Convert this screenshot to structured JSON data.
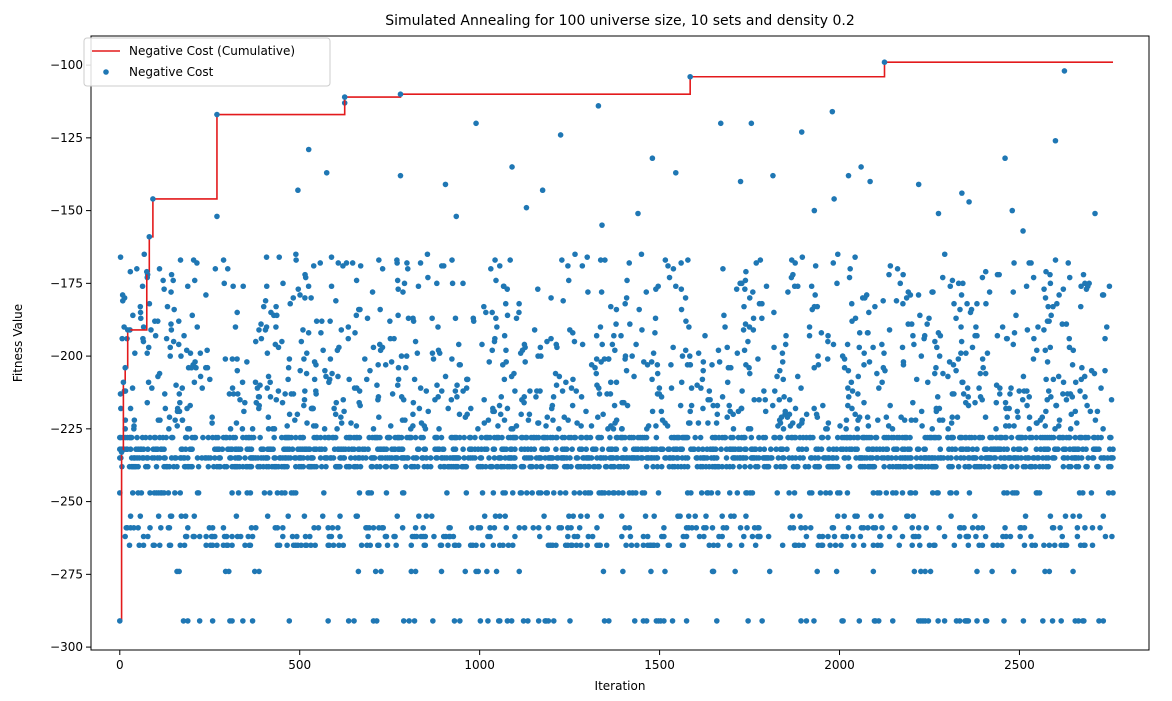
{
  "chart_data": {
    "type": "scatter",
    "title": "Simulated Annealing for 100 universe size, 10 sets and density 0.2",
    "xlabel": "Iteration",
    "ylabel": "Fitness Value",
    "xlim": [
      -80,
      2860
    ],
    "ylim": [
      -301,
      -90
    ],
    "xticks": [
      0,
      500,
      1000,
      1500,
      2000,
      2500
    ],
    "xtick_labels": [
      "0",
      "500",
      "1000",
      "1500",
      "2000",
      "2500"
    ],
    "yticks": [
      -300,
      -275,
      -250,
      -225,
      -200,
      -175,
      -150,
      -125,
      -100
    ],
    "ytick_labels": [
      "−300",
      "−275",
      "−250",
      "−225",
      "−200",
      "−175",
      "−150",
      "−125",
      "−100"
    ],
    "grid": false,
    "legend_position": "top-left",
    "legend": [
      "Negative Cost (Cumulative)",
      "Negative Cost"
    ],
    "series": [
      {
        "name": "Negative Cost (Cumulative)",
        "kind": "step-line",
        "color": "#e31a1c",
        "x": [
          0,
          5,
          10,
          15,
          22,
          75,
          82,
          92,
          270,
          625,
          780,
          1585,
          2125,
          2760
        ],
        "y": [
          -291,
          -233,
          -209,
          -204,
          -191,
          -171,
          -159,
          -146,
          -117,
          -111,
          -110,
          -104,
          -99,
          -99
        ]
      },
      {
        "name": "Negative Cost",
        "kind": "scatter",
        "color": "#1f77b4",
        "levels": [
          {
            "y": -291,
            "density": 0.09
          },
          {
            "y": -274,
            "density": 0.035
          },
          {
            "y": -265,
            "density": 0.14
          },
          {
            "y": -262,
            "density": 0.12
          },
          {
            "y": -259,
            "density": 0.1
          },
          {
            "y": -255,
            "density": 0.05
          },
          {
            "y": -247,
            "density": 0.14
          },
          {
            "y": -238,
            "density": 0.3
          },
          {
            "y": -235,
            "density": 0.45
          },
          {
            "y": -232,
            "density": 0.3
          },
          {
            "y": -228,
            "density": 0.35
          }
        ],
        "scattered_range": [
          -225,
          -165
        ],
        "scattered_count": 1000,
        "outliers": [
          {
            "x": 270,
            "y": -152
          },
          {
            "x": 300,
            "y": -170
          },
          {
            "x": 315,
            "y": -176
          },
          {
            "x": 400,
            "y": -183
          },
          {
            "x": 490,
            "y": -167
          },
          {
            "x": 495,
            "y": -143
          },
          {
            "x": 525,
            "y": -129
          },
          {
            "x": 575,
            "y": -137
          },
          {
            "x": 625,
            "y": -113
          },
          {
            "x": 630,
            "y": -168
          },
          {
            "x": 770,
            "y": -167
          },
          {
            "x": 780,
            "y": -138
          },
          {
            "x": 905,
            "y": -141
          },
          {
            "x": 935,
            "y": -152
          },
          {
            "x": 990,
            "y": -120
          },
          {
            "x": 1090,
            "y": -135
          },
          {
            "x": 1130,
            "y": -149
          },
          {
            "x": 1175,
            "y": -143
          },
          {
            "x": 1225,
            "y": -124
          },
          {
            "x": 1265,
            "y": -165
          },
          {
            "x": 1330,
            "y": -114
          },
          {
            "x": 1340,
            "y": -155
          },
          {
            "x": 1440,
            "y": -151
          },
          {
            "x": 1480,
            "y": -132
          },
          {
            "x": 1545,
            "y": -137
          },
          {
            "x": 1670,
            "y": -120
          },
          {
            "x": 1725,
            "y": -140
          },
          {
            "x": 1755,
            "y": -120
          },
          {
            "x": 1780,
            "y": -167
          },
          {
            "x": 1815,
            "y": -138
          },
          {
            "x": 1895,
            "y": -123
          },
          {
            "x": 1930,
            "y": -150
          },
          {
            "x": 1980,
            "y": -116
          },
          {
            "x": 1985,
            "y": -146
          },
          {
            "x": 2025,
            "y": -138
          },
          {
            "x": 2060,
            "y": -135
          },
          {
            "x": 2085,
            "y": -140
          },
          {
            "x": 2220,
            "y": -141
          },
          {
            "x": 2275,
            "y": -151
          },
          {
            "x": 2340,
            "y": -144
          },
          {
            "x": 2360,
            "y": -147
          },
          {
            "x": 2460,
            "y": -132
          },
          {
            "x": 2480,
            "y": -150
          },
          {
            "x": 2510,
            "y": -157
          },
          {
            "x": 2600,
            "y": -126
          },
          {
            "x": 2625,
            "y": -102
          },
          {
            "x": 2710,
            "y": -151
          },
          {
            "x": 2750,
            "y": -176
          }
        ],
        "x_range": [
          0,
          2760
        ]
      }
    ]
  }
}
